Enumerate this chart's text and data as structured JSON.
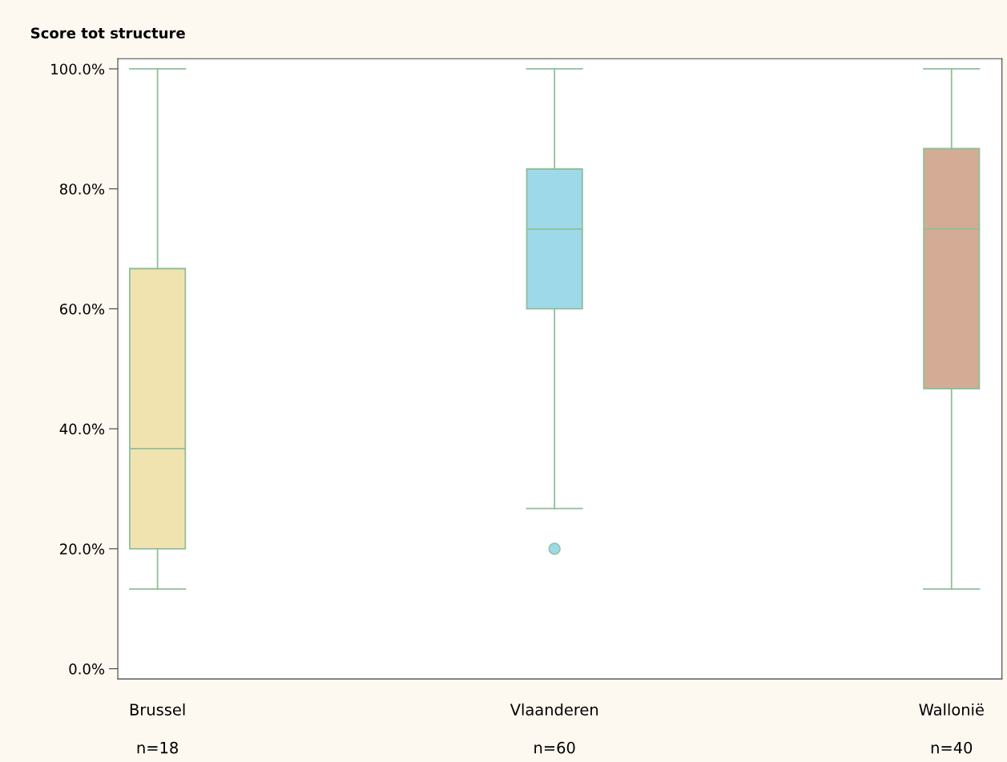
{
  "chart_data": {
    "type": "box",
    "title": "Score tot structure",
    "categories": [
      "Brussel",
      "Vlaanderen",
      "Wallonië"
    ],
    "boxes": [
      {
        "low": 13.3,
        "q1": 20,
        "median": 36.7,
        "q3": 66.7,
        "high": 100
      },
      {
        "low": 26.7,
        "q1": 60,
        "median": 73.3,
        "q3": 83.3,
        "high": 100,
        "outliers": [
          20
        ]
      },
      {
        "low": 13.3,
        "q1": 46.7,
        "median": 73.3,
        "q3": 86.7,
        "high": 100
      }
    ],
    "colors": [
      "#f0e3b0",
      "#9dd9e8",
      "#d4ab94"
    ],
    "ylim": [
      -1.7,
      101.7
    ],
    "yticks": [
      {
        "value": 0,
        "label": "0.0%"
      },
      {
        "value": 20,
        "label": "20.0%"
      },
      {
        "value": 40,
        "label": "40.0%"
      },
      {
        "value": 60,
        "label": "60.0%"
      },
      {
        "value": 80,
        "label": "80.0%"
      },
      {
        "value": 100,
        "label": "100.0%"
      }
    ],
    "annotations": [
      "n=18",
      "n=60",
      "n=40"
    ],
    "grid": false,
    "legend": false
  }
}
